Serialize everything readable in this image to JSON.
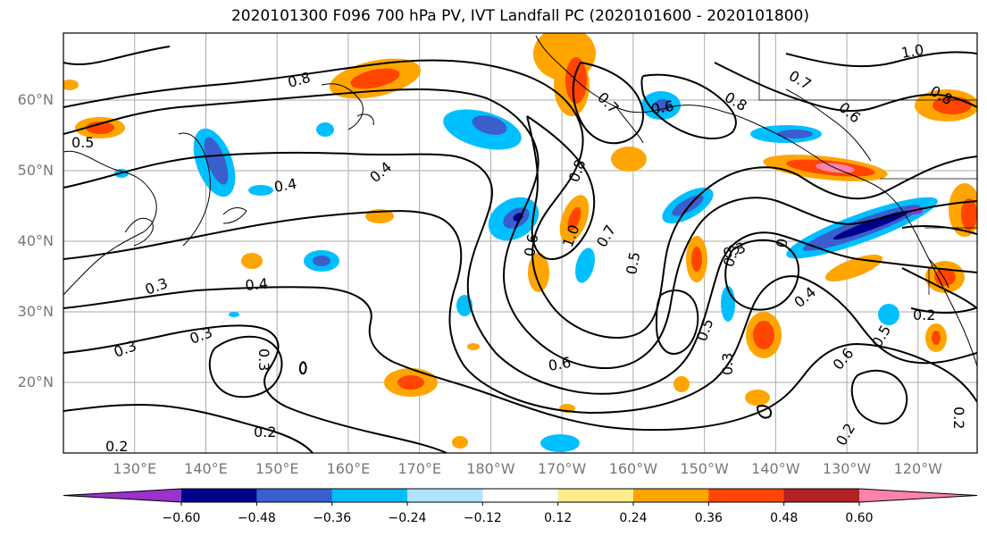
{
  "title": "2020101300 F096 700 hPa PV, IVT Landfall PC (2020101600 - 2020101800)",
  "map": {
    "lat_labels": [
      {
        "text": "60°N",
        "lat": 60
      },
      {
        "text": "50°N",
        "lat": 50
      },
      {
        "text": "40°N",
        "lat": 40
      },
      {
        "text": "30°N",
        "lat": 30
      },
      {
        "text": "20°N",
        "lat": 20
      }
    ],
    "lon_labels": [
      {
        "text": "130°E",
        "lon": 130
      },
      {
        "text": "140°E",
        "lon": 140
      },
      {
        "text": "150°E",
        "lon": 150
      },
      {
        "text": "160°E",
        "lon": 160
      },
      {
        "text": "170°E",
        "lon": 170
      },
      {
        "text": "180°W",
        "lon": 180
      },
      {
        "text": "170°W",
        "lon": 190
      },
      {
        "text": "160°W",
        "lon": 200
      },
      {
        "text": "150°W",
        "lon": 210
      },
      {
        "text": "140°W",
        "lon": 220
      },
      {
        "text": "130°W",
        "lon": 230
      },
      {
        "text": "120°W",
        "lon": 240
      }
    ],
    "contour_labels": [
      "0.8",
      "0.8",
      "0.8",
      "0.7",
      "0.6",
      "0.4",
      "0.4",
      "0.4",
      "0.4",
      "0.3",
      "0.3",
      "0.3",
      "0.3",
      "0.2",
      "0.2",
      "0.2",
      "0.2",
      "0.5",
      "0.5",
      "0.5",
      "0.5",
      "0.6",
      "0.6",
      "0.6",
      "1.0",
      "1.0",
      "0.7",
      "0.3",
      "0.3",
      "0.3",
      "0.2",
      "0.8",
      "0.6",
      "0.7",
      "0"
    ]
  },
  "colorbar": {
    "ticks": [
      "−0.60",
      "−0.48",
      "−0.36",
      "−0.24",
      "−0.12",
      "0.12",
      "0.24",
      "0.36",
      "0.48",
      "0.60"
    ],
    "colors": {
      "neg_extend": "#9a32cd",
      "neg_060": "#00008b",
      "neg_048": "#3a5fcd",
      "neg_036": "#00bfff",
      "neg_024": "#b0e2ff",
      "neutral": "#ffffff",
      "pos_012": "#ffec8b",
      "pos_024": "#ffa500",
      "pos_036": "#ff4500",
      "pos_048": "#b22222",
      "pos_extend": "#ff82ab"
    }
  }
}
